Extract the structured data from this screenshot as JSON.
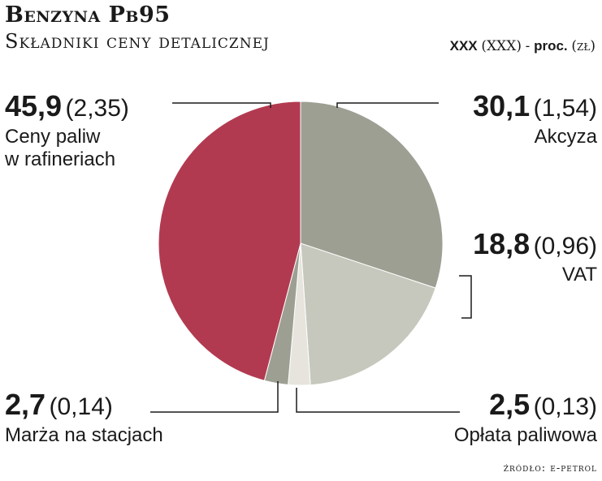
{
  "title": "Benzyna Pb95",
  "subtitle": "Składniki ceny detalicznej",
  "unit_note": {
    "pct": "XXX",
    "zl": "(XXX)",
    "sep": " - ",
    "proc": "proc.",
    "zl_unit": "(zł)"
  },
  "source": "źródło: e-petrol",
  "colors": {
    "akcyza": "#9d9f93",
    "vat": "#c7c8bd",
    "oplata": "#e6e4dc",
    "marza": "#9d9f93",
    "rafinerie": "#b23a50"
  },
  "chart_data": {
    "type": "pie",
    "title": "Benzyna Pb95",
    "subtitle": "Składniki ceny detalicznej",
    "unit": "XXX (XXX) - proc. (zł)",
    "slices": [
      {
        "key": "akcyza",
        "label": "Akcyza",
        "value": 30.1,
        "value_text": "30,1",
        "zl_text": "(1,54)",
        "zl": 1.54
      },
      {
        "key": "vat",
        "label": "VAT",
        "value": 18.8,
        "value_text": "18,8",
        "zl_text": "(0,96)",
        "zl": 0.96
      },
      {
        "key": "oplata",
        "label": "Opłata paliwowa",
        "value": 2.5,
        "value_text": "2,5",
        "zl_text": "(0,13)",
        "zl": 0.13
      },
      {
        "key": "marza",
        "label": "Marża na stacjach",
        "value": 2.7,
        "value_text": "2,7",
        "zl_text": "(0,14)",
        "zl": 0.14
      },
      {
        "key": "rafinerie",
        "label": "Ceny paliw\nw rafineriach",
        "label_line1": "Ceny paliw",
        "label_line2": "w rafineriach",
        "value": 45.9,
        "value_text": "45,9",
        "zl_text": "(2,35)",
        "zl": 2.35
      }
    ],
    "start_angle_deg": 0,
    "direction": "clockwise"
  }
}
